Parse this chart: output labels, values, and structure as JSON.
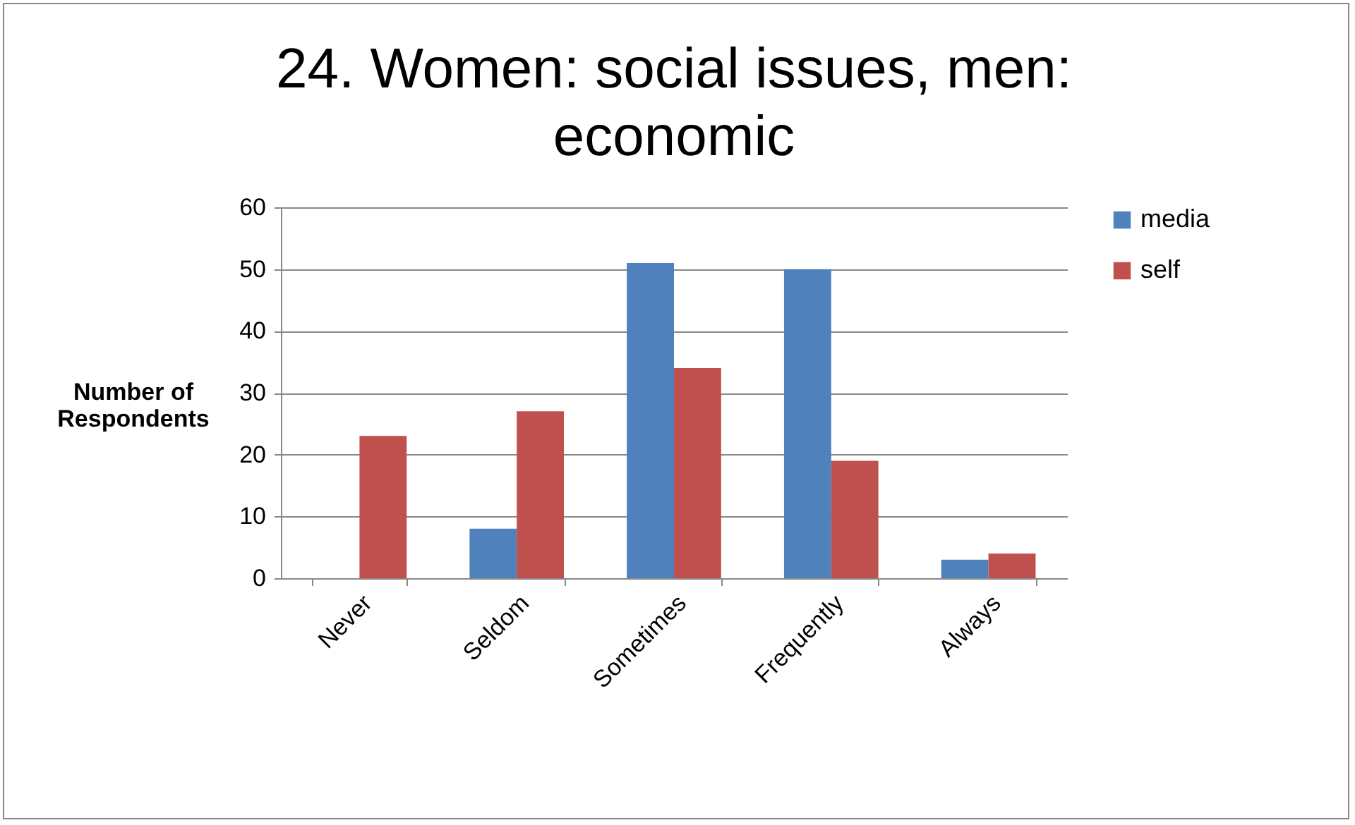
{
  "chart_data": {
    "type": "bar",
    "title": "24. Women: social issues,  men: economic",
    "ylabel": "Number of Respondents",
    "categories": [
      "Never",
      "Seldom",
      "Sometimes",
      "Frequently",
      "Always"
    ],
    "series": [
      {
        "name": "media",
        "color": "#4f81bd",
        "values": [
          0,
          8,
          51,
          50,
          3
        ]
      },
      {
        "name": "self",
        "color": "#c0504d",
        "values": [
          23,
          27,
          34,
          19,
          4
        ]
      }
    ],
    "ylim": [
      0,
      60
    ],
    "yticks": [
      0,
      10,
      20,
      30,
      40,
      50,
      60
    ],
    "grid": "y",
    "legend": "right"
  }
}
